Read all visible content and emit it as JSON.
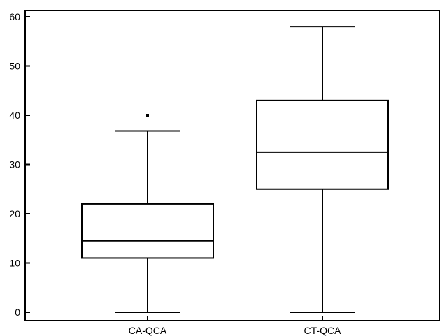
{
  "chart_data": {
    "type": "box",
    "title": "",
    "xlabel": "",
    "ylabel": "",
    "ylim": [
      -2,
      61
    ],
    "yticks": [
      0,
      10,
      20,
      30,
      40,
      50,
      60
    ],
    "grid": false,
    "categories": [
      "CA-QCA",
      "CT-QCA"
    ],
    "boxes": [
      {
        "category": "CA-QCA",
        "whisker_low": 0,
        "q1": 11,
        "median": 14.5,
        "q3": 22,
        "whisker_high": 36.8,
        "outliers": [
          40
        ]
      },
      {
        "category": "CT-QCA",
        "whisker_low": 0,
        "q1": 25,
        "median": 32.5,
        "q3": 43,
        "whisker_high": 58,
        "outliers": []
      }
    ]
  }
}
